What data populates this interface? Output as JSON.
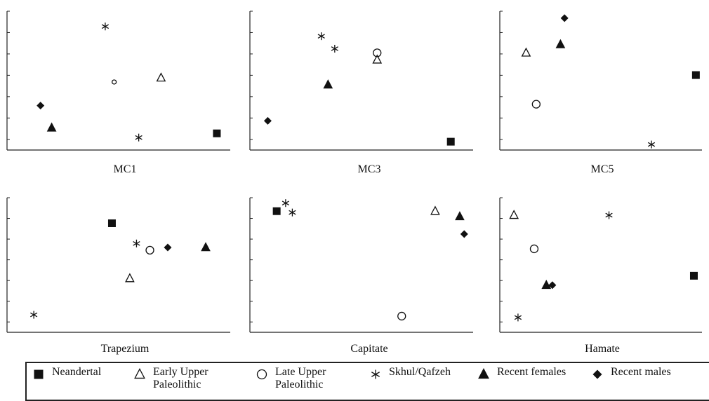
{
  "chart_data": [
    {
      "type": "scatter",
      "title": "MC1",
      "xlim": [
        0,
        100
      ],
      "ylim": [
        0,
        100
      ],
      "points": [
        {
          "group": "Skhul/Qafzeh",
          "x": 44,
          "y": 89
        },
        {
          "group": "Late Upper Paleolithic",
          "x": 48,
          "y": 49,
          "small": true
        },
        {
          "group": "Early Upper Paleolithic",
          "x": 69,
          "y": 52
        },
        {
          "group": "Recent males",
          "x": 15,
          "y": 32
        },
        {
          "group": "Recent females",
          "x": 20,
          "y": 16
        },
        {
          "group": "Skhul/Qafzeh",
          "x": 59,
          "y": 9
        },
        {
          "group": "Neandertal",
          "x": 94,
          "y": 12
        }
      ]
    },
    {
      "type": "scatter",
      "title": "MC3",
      "xlim": [
        0,
        100
      ],
      "ylim": [
        0,
        100
      ],
      "points": [
        {
          "group": "Skhul/Qafzeh",
          "x": 32,
          "y": 82
        },
        {
          "group": "Skhul/Qafzeh",
          "x": 38,
          "y": 73
        },
        {
          "group": "Late Upper Paleolithic",
          "x": 57,
          "y": 70
        },
        {
          "group": "Early Upper Paleolithic",
          "x": 57,
          "y": 65
        },
        {
          "group": "Recent females",
          "x": 35,
          "y": 47
        },
        {
          "group": "Recent males",
          "x": 8,
          "y": 21
        },
        {
          "group": "Neandertal",
          "x": 90,
          "y": 6
        }
      ]
    },
    {
      "type": "scatter",
      "title": "MC5",
      "xlim": [
        0,
        100
      ],
      "ylim": [
        0,
        100
      ],
      "points": [
        {
          "group": "Recent males",
          "x": 32,
          "y": 95
        },
        {
          "group": "Early Upper Paleolithic",
          "x": 13,
          "y": 70
        },
        {
          "group": "Recent females",
          "x": 30,
          "y": 76
        },
        {
          "group": "Neandertal",
          "x": 97,
          "y": 54
        },
        {
          "group": "Late Upper Paleolithic",
          "x": 18,
          "y": 33
        },
        {
          "group": "Skhul/Qafzeh",
          "x": 75,
          "y": 4
        }
      ]
    },
    {
      "type": "scatter",
      "title": "Trapezium",
      "xlim": [
        0,
        100
      ],
      "ylim": [
        0,
        100
      ],
      "points": [
        {
          "group": "Neandertal",
          "x": 47,
          "y": 81
        },
        {
          "group": "Skhul/Qafzeh",
          "x": 58,
          "y": 66
        },
        {
          "group": "Late Upper Paleolithic",
          "x": 64,
          "y": 61
        },
        {
          "group": "Recent males",
          "x": 72,
          "y": 63
        },
        {
          "group": "Recent females",
          "x": 89,
          "y": 63
        },
        {
          "group": "Early Upper Paleolithic",
          "x": 55,
          "y": 40
        },
        {
          "group": "Skhul/Qafzeh",
          "x": 12,
          "y": 13
        }
      ]
    },
    {
      "type": "scatter",
      "title": "Capitate",
      "xlim": [
        0,
        100
      ],
      "ylim": [
        0,
        100
      ],
      "points": [
        {
          "group": "Skhul/Qafzeh",
          "x": 16,
          "y": 96
        },
        {
          "group": "Neandertal",
          "x": 12,
          "y": 90
        },
        {
          "group": "Skhul/Qafzeh",
          "x": 19,
          "y": 89
        },
        {
          "group": "Early Upper Paleolithic",
          "x": 83,
          "y": 90
        },
        {
          "group": "Recent females",
          "x": 94,
          "y": 86
        },
        {
          "group": "Recent males",
          "x": 96,
          "y": 73
        },
        {
          "group": "Late Upper Paleolithic",
          "x": 68,
          "y": 12
        }
      ]
    },
    {
      "type": "scatter",
      "title": "Hamate",
      "xlim": [
        0,
        100
      ],
      "ylim": [
        0,
        100
      ],
      "points": [
        {
          "group": "Early Upper Paleolithic",
          "x": 7,
          "y": 87
        },
        {
          "group": "Skhul/Qafzeh",
          "x": 54,
          "y": 87
        },
        {
          "group": "Late Upper Paleolithic",
          "x": 17,
          "y": 62
        },
        {
          "group": "Neandertal",
          "x": 96,
          "y": 42
        },
        {
          "group": "Recent females",
          "x": 23,
          "y": 35
        },
        {
          "group": "Recent males",
          "x": 26,
          "y": 35
        },
        {
          "group": "Skhul/Qafzeh",
          "x": 9,
          "y": 11
        }
      ]
    }
  ],
  "legend": [
    {
      "label": "Neandertal",
      "symbol": "filled-square"
    },
    {
      "label": "Early Upper\nPaleolithic",
      "symbol": "open-triangle"
    },
    {
      "label": "Late Upper\nPaleolithic",
      "symbol": "open-circle"
    },
    {
      "label": "Skhul/Qafzeh",
      "symbol": "asterisk"
    },
    {
      "label": "Recent females",
      "symbol": "filled-triangle"
    },
    {
      "label": "Recent males",
      "symbol": "filled-diamond"
    }
  ],
  "colors": {
    "ink": "#111111",
    "axis": "#222222",
    "background": "#ffffff"
  }
}
